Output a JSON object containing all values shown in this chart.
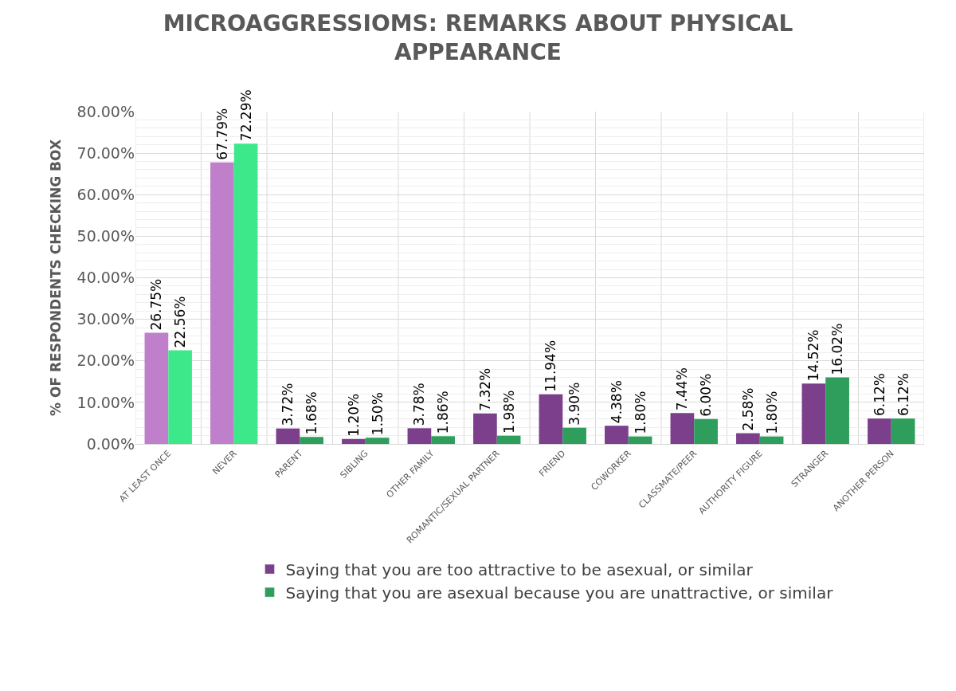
{
  "chart_data": {
    "type": "bar",
    "title": "MICROAGGRESSIOMS: REMARKS ABOUT PHYSICAL APPEARANCE",
    "ylabel": "% OF RESPONDENTS CHECKING BOX",
    "categories": [
      "AT LEAST ONCE",
      "NEVER",
      "PARENT",
      "SIBLING",
      "OTHER FAMILY",
      "ROMANTIC/SEXUAL PARTNER",
      "FRIEND",
      "COWORKER",
      "CLASSMATE/PEER",
      "AUTHORITY FIGURE",
      "STRANGER",
      "ANOTHER PERSON"
    ],
    "series": [
      {
        "name": "Saying that you are too attractive to be asexual, or similar",
        "color": "#7b3f8c",
        "colors": [
          "#bf7fca",
          "#bf7fca",
          "#7b3f8c",
          "#7b3f8c",
          "#7b3f8c",
          "#7b3f8c",
          "#7b3f8c",
          "#7b3f8c",
          "#7b3f8c",
          "#7b3f8c",
          "#7b3f8c",
          "#7b3f8c"
        ],
        "values": [
          26.75,
          67.79,
          3.72,
          1.2,
          3.78,
          7.32,
          11.94,
          4.38,
          7.44,
          2.58,
          14.52,
          6.12
        ],
        "value_labels": [
          "26.75%",
          "67.79%",
          "3.72%",
          "1.20%",
          "3.78%",
          "7.32%",
          "11.94%",
          "4.38%",
          "7.44%",
          "2.58%",
          "14.52%",
          "6.12%"
        ]
      },
      {
        "name": "Saying that you are asexual because you are unattractive, or similar",
        "color": "#2f9e5c",
        "colors": [
          "#3de88a",
          "#3de88a",
          "#2f9e5c",
          "#2f9e5c",
          "#2f9e5c",
          "#2f9e5c",
          "#2f9e5c",
          "#2f9e5c",
          "#2f9e5c",
          "#2f9e5c",
          "#2f9e5c",
          "#2f9e5c"
        ],
        "values": [
          22.56,
          72.29,
          1.68,
          1.5,
          1.86,
          1.98,
          3.9,
          1.8,
          6.0,
          1.8,
          16.02,
          6.12
        ],
        "value_labels": [
          "22.56%",
          "72.29%",
          "1.68%",
          "1.50%",
          "1.86%",
          "1.98%",
          "3.90%",
          "1.80%",
          "6.00%",
          "1.80%",
          "16.02%",
          "6.12%"
        ]
      }
    ],
    "ylim": [
      0,
      80
    ],
    "yticks": [
      {
        "value": 0,
        "label": "0.00%"
      },
      {
        "value": 10,
        "label": "10.00%"
      },
      {
        "value": 20,
        "label": "20.00%"
      },
      {
        "value": 30,
        "label": "30.00%"
      },
      {
        "value": 40,
        "label": "40.00%"
      },
      {
        "value": 50,
        "label": "50.00%"
      },
      {
        "value": 60,
        "label": "60.00%"
      },
      {
        "value": 70,
        "label": "70.00%"
      },
      {
        "value": 80,
        "label": "80.00%"
      }
    ],
    "grid": true,
    "legend": "bottom"
  }
}
